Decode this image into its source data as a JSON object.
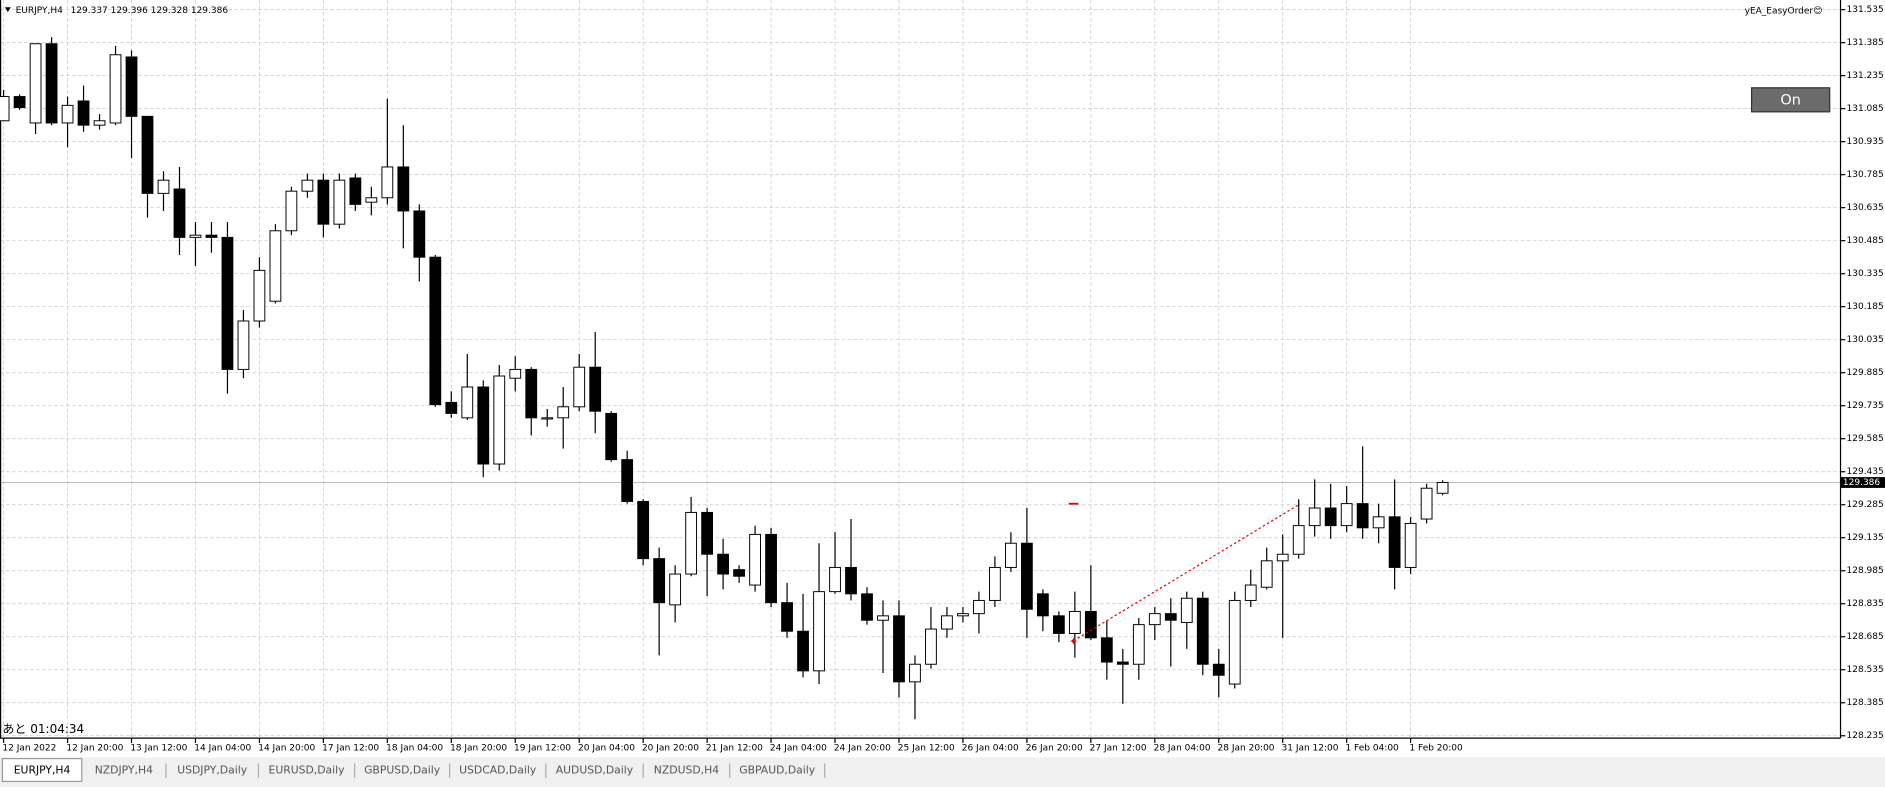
{
  "header": {
    "symbol": "EURJPY,H4"
  },
  "indicator": "yEA_EasyOrder😊",
  "button": "On",
  "countdown": "あと 01:04:34",
  "tabs": [
    "EURJPY,H4",
    "NZDJPY,H4",
    "USDJPY,Daily",
    "EURUSD,Daily",
    "GBPUSD,Daily",
    "USDCAD,Daily",
    "AUDUSD,Daily",
    "NZDUSD,H4",
    "GBPAUD,Daily"
  ],
  "chart_data": {
    "type": "candlestick",
    "categories": [
      "12 Jan 2022",
      null,
      null,
      null,
      "12 Jan 20:00",
      null,
      null,
      null,
      "13 Jan 12:00",
      null,
      null,
      null,
      "14 Jan 04:00",
      null,
      null,
      null,
      "14 Jan 20:00",
      null,
      null,
      null,
      "17 Jan 12:00",
      null,
      null,
      null,
      "18 Jan 04:00",
      null,
      null,
      null,
      "18 Jan 20:00",
      null,
      null,
      null,
      "19 Jan 12:00",
      null,
      null,
      null,
      "20 Jan 04:00",
      null,
      null,
      null,
      "20 Jan 20:00",
      null,
      null,
      null,
      "21 Jan 12:00",
      null,
      null,
      null,
      "24 Jan 04:00",
      null,
      null,
      null,
      "24 Jan 20:00",
      null,
      null,
      null,
      "25 Jan 12:00",
      null,
      null,
      null,
      "26 Jan 04:00",
      null,
      null,
      null,
      "26 Jan 20:00",
      null,
      null,
      null,
      "27 Jan 12:00",
      null,
      null,
      null,
      "28 Jan 04:00",
      null,
      null,
      null,
      "28 Jan 20:00",
      null,
      null,
      null,
      "31 Jan 12:00",
      null,
      null,
      null,
      "1 Feb 04:00",
      null,
      null,
      null,
      "1 Feb 20:00",
      null,
      null
    ],
    "open": [
      131.03,
      131.14,
      131.02,
      131.38,
      131.02,
      131.12,
      131.01,
      131.02,
      131.32,
      131.05,
      130.7,
      130.72,
      130.5,
      130.51,
      130.5,
      129.9,
      130.12,
      130.21,
      130.53,
      130.71,
      130.76,
      130.56,
      130.77,
      130.66,
      130.68,
      130.82,
      130.62,
      130.41,
      129.75,
      129.68,
      129.82,
      129.47,
      129.86,
      129.9,
      129.68,
      129.68,
      129.73,
      129.91,
      129.7,
      129.49,
      129.3,
      129.04,
      128.83,
      128.97,
      129.25,
      129.06,
      128.99,
      128.92,
      129.15,
      128.84,
      128.71,
      128.53,
      128.89,
      129.0,
      128.88,
      128.76,
      128.78,
      128.48,
      128.56,
      128.72,
      128.78,
      128.79,
      128.85,
      129.0,
      129.11,
      128.88,
      128.78,
      128.7,
      128.8,
      128.68,
      128.57,
      128.56,
      128.74,
      128.79,
      128.75,
      128.86,
      128.56,
      128.47,
      128.85,
      128.91,
      129.03,
      129.06,
      129.19,
      129.27,
      129.19,
      129.29,
      129.18,
      129.23,
      129.0,
      129.22,
      129.337
    ],
    "high": [
      131.17,
      131.15,
      131.38,
      131.41,
      131.14,
      131.19,
      131.06,
      131.37,
      131.35,
      131.05,
      130.8,
      130.82,
      130.57,
      130.57,
      130.57,
      130.17,
      130.41,
      130.56,
      130.73,
      130.79,
      130.79,
      130.79,
      130.79,
      130.73,
      131.13,
      131.01,
      130.65,
      130.42,
      129.8,
      129.97,
      129.85,
      129.92,
      129.96,
      129.91,
      129.72,
      129.82,
      129.97,
      130.07,
      129.71,
      129.53,
      129.31,
      129.09,
      129.01,
      129.32,
      129.27,
      129.13,
      129.01,
      129.19,
      129.18,
      128.93,
      128.88,
      129.11,
      129.16,
      129.22,
      128.91,
      128.85,
      128.85,
      128.6,
      128.82,
      128.82,
      128.82,
      128.89,
      129.05,
      129.16,
      129.27,
      128.9,
      128.8,
      128.89,
      129.01,
      128.76,
      128.63,
      128.77,
      128.82,
      128.86,
      128.89,
      128.89,
      128.63,
      128.89,
      128.99,
      129.09,
      129.15,
      129.31,
      129.4,
      129.38,
      129.37,
      129.55,
      129.29,
      129.4,
      129.23,
      129.38,
      129.396
    ],
    "low": [
      131.03,
      131.08,
      130.97,
      131.01,
      130.91,
      130.98,
      130.99,
      131.01,
      130.86,
      130.59,
      130.62,
      130.42,
      130.37,
      130.43,
      129.79,
      129.86,
      130.09,
      130.2,
      130.51,
      130.68,
      130.5,
      130.54,
      130.62,
      130.6,
      130.65,
      130.45,
      130.3,
      129.73,
      129.68,
      129.67,
      129.41,
      129.44,
      129.8,
      129.6,
      129.64,
      129.54,
      129.71,
      129.61,
      129.48,
      129.29,
      129.01,
      128.6,
      128.75,
      128.96,
      128.87,
      128.9,
      128.93,
      128.89,
      128.82,
      128.68,
      128.5,
      128.47,
      128.88,
      128.85,
      128.74,
      128.52,
      128.41,
      128.31,
      128.54,
      128.68,
      128.75,
      128.7,
      128.82,
      128.98,
      128.68,
      128.71,
      128.66,
      128.59,
      128.67,
      128.49,
      128.38,
      128.49,
      128.67,
      128.55,
      128.63,
      128.51,
      128.41,
      128.45,
      128.82,
      128.9,
      128.68,
      129.04,
      129.14,
      129.13,
      129.16,
      129.13,
      129.11,
      128.9,
      128.97,
      129.2,
      129.328
    ],
    "close": [
      131.14,
      131.09,
      131.38,
      131.02,
      131.1,
      131.01,
      131.03,
      131.33,
      131.05,
      130.7,
      130.76,
      130.5,
      130.51,
      130.5,
      129.9,
      130.12,
      130.35,
      130.53,
      130.71,
      130.76,
      130.56,
      130.76,
      130.65,
      130.68,
      130.82,
      130.62,
      130.41,
      129.74,
      129.7,
      129.82,
      129.47,
      129.87,
      129.9,
      129.68,
      129.68,
      129.73,
      129.91,
      129.71,
      129.49,
      129.3,
      129.04,
      128.84,
      128.97,
      129.25,
      129.06,
      128.97,
      128.96,
      129.15,
      128.84,
      128.71,
      128.53,
      128.89,
      129.0,
      128.88,
      128.76,
      128.78,
      128.48,
      128.56,
      128.72,
      128.78,
      128.79,
      128.85,
      129.0,
      129.11,
      128.81,
      128.78,
      128.7,
      128.8,
      128.68,
      128.57,
      128.56,
      128.74,
      128.79,
      128.76,
      128.86,
      128.56,
      128.51,
      128.85,
      128.92,
      129.03,
      129.06,
      129.19,
      129.27,
      129.19,
      129.29,
      129.18,
      129.23,
      129.0,
      129.2,
      129.36,
      129.386
    ],
    "ylim": [
      128.235,
      131.535
    ],
    "yticks": [
      128.235,
      128.385,
      128.535,
      128.685,
      128.835,
      128.985,
      129.135,
      129.285,
      129.435,
      129.585,
      129.735,
      129.885,
      130.035,
      130.185,
      130.335,
      130.485,
      130.635,
      130.785,
      130.935,
      131.085,
      131.235,
      131.385,
      131.535
    ],
    "grid": true,
    "up_color": "#ffffff",
    "down_color": "#000000"
  }
}
